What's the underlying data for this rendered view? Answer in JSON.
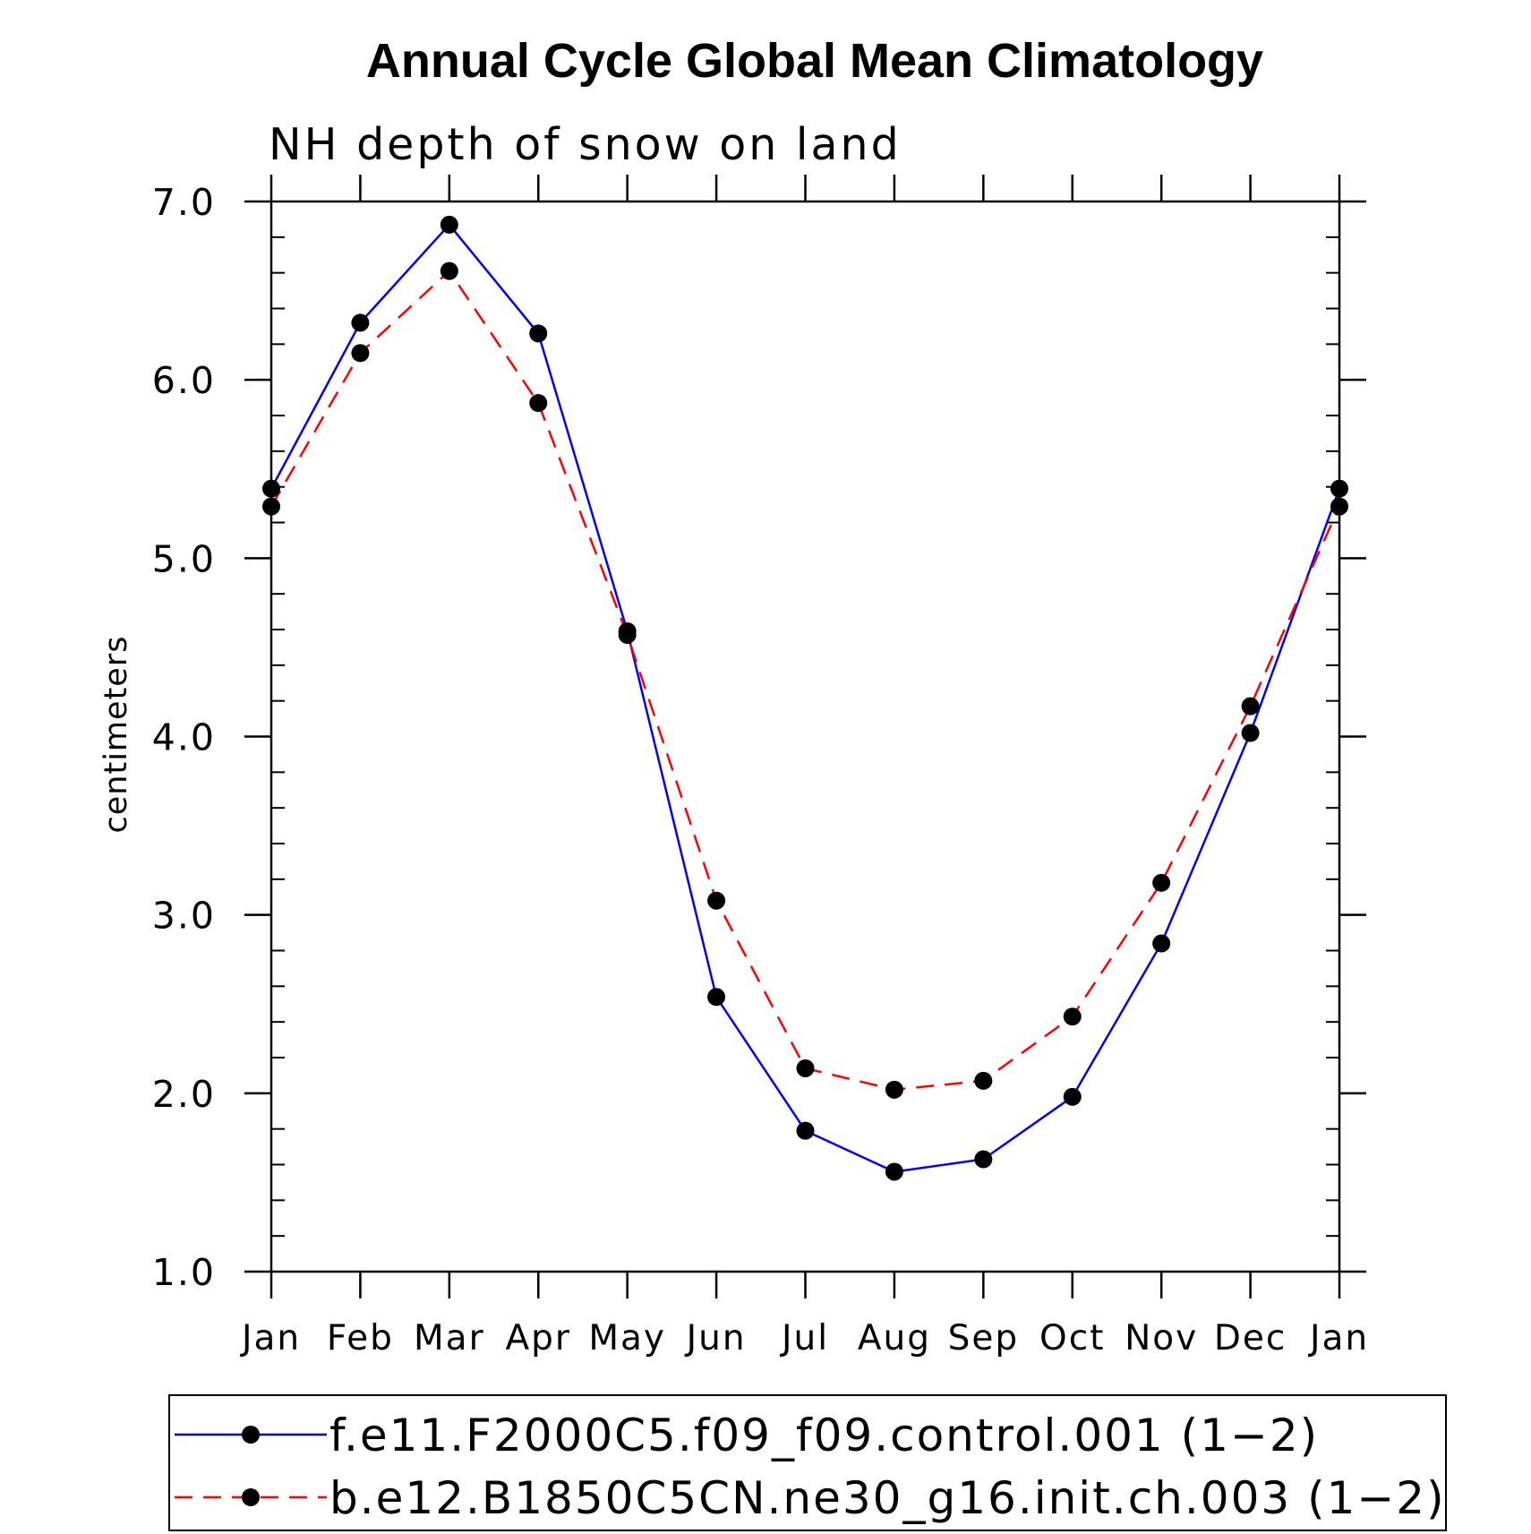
{
  "chart_data": {
    "type": "line",
    "title": "Annual Cycle Global Mean Climatology",
    "subtitle": "NH depth of snow on land",
    "ylabel": "centimeters",
    "xlabel": "",
    "ylim": [
      1.0,
      7.0
    ],
    "yticks": [
      1.0,
      2.0,
      3.0,
      4.0,
      5.0,
      6.0,
      7.0
    ],
    "ytick_labels": [
      "1.0",
      "2.0",
      "3.0",
      "4.0",
      "5.0",
      "6.0",
      "7.0"
    ],
    "categories": [
      "Jan",
      "Feb",
      "Mar",
      "Apr",
      "May",
      "Jun",
      "Jul",
      "Aug",
      "Sep",
      "Oct",
      "Nov",
      "Dec",
      "Jan"
    ],
    "series": [
      {
        "name": "f.e11.F2000C5.f09_f09.control.001 (1−2)",
        "color": "#0000ff",
        "dash": "solid",
        "values": [
          5.39,
          6.32,
          6.87,
          6.26,
          4.59,
          2.54,
          1.79,
          1.56,
          1.63,
          1.98,
          2.84,
          4.02,
          5.39
        ]
      },
      {
        "name": "b.e12.B1850C5CN.ne30_g16.init.ch.003 (1−2)",
        "color": "#ff0000",
        "dash": "dashed",
        "values": [
          5.29,
          6.15,
          6.61,
          5.87,
          4.57,
          3.08,
          2.14,
          2.02,
          2.07,
          2.43,
          3.18,
          4.17,
          5.29
        ]
      }
    ],
    "marker_color": "#000000",
    "legend_position": "bottom"
  }
}
